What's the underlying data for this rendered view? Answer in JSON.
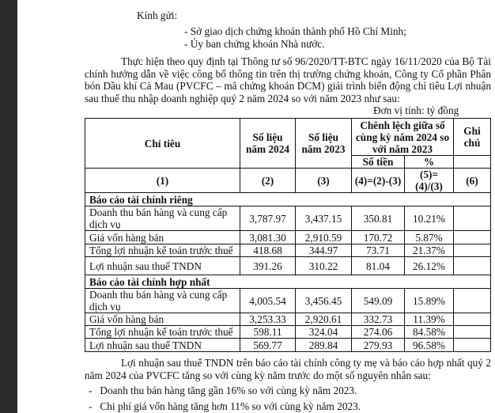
{
  "greeting": "Kính gửi:",
  "recipients": [
    "- Sở giao dịch chứng khoán thành phố Hồ Chí Minh;",
    "- Ủy ban chứng khoán Nhà nước."
  ],
  "intro": "Thực hiện theo quy định tại Thông tư số 96/2020/TT-BTC ngày 16/11/2020 của Bộ Tài chính hướng dẫn về việc công bố thông tin trên thị trường chứng khoán, Công ty Cổ phần Phân bón Dầu khí Cà Mau (PVCFC – mã chứng khoán DCM) giải trình biến động chỉ tiêu Lợi nhuận sau thuế thu nhập doanh nghiệp quý 2 năm 2024 so với năm 2023 như sau:",
  "unit": "Đơn vị tính: tỷ đồng",
  "table": {
    "headers": {
      "indicator": "Chỉ tiêu",
      "y2024": "Số liệu năm 2024",
      "y2023": "Số liệu năm 2023",
      "diff": "Chênh lệch giữa số cùng kỳ năm 2024 so với  năm 2023",
      "amount": "Số tiền",
      "pct": "%",
      "note": "Ghi chú"
    },
    "colnums": [
      "(1)",
      "(2)",
      "(3)",
      "(4)=(2)-(3)",
      "(5)=(4)/(3)",
      "(6)"
    ],
    "sections": [
      {
        "title": "Báo cáo tài chính riêng",
        "rows": [
          [
            "Doanh thu bán hàng và cung cấp dịch vụ",
            "3,787.97",
            "3,437.15",
            "350.81",
            "10.21%",
            ""
          ],
          [
            "Giá vốn hàng bán",
            "3,081.30",
            "2,910.59",
            "170.72",
            "5.87%",
            ""
          ],
          [
            "Tổng lợi nhuận kế toán trước thuế",
            "418.68",
            "344.97",
            "73.71",
            "21.37%",
            ""
          ],
          [
            "Lợi nhuận sau thuế TNDN",
            "391.26",
            "310.22",
            "81.04",
            "26.12%",
            ""
          ]
        ]
      },
      {
        "title": "Báo cáo tài chính hợp nhất",
        "rows": [
          [
            "Doanh thu bán hàng và cung cấp dịch vụ",
            "4,005.54",
            "3,456.45",
            "549.09",
            "15.89%",
            ""
          ],
          [
            "Giá vốn hàng bán",
            "3,253.33",
            "2,920.61",
            "332.73",
            "11.39%",
            ""
          ],
          [
            "Tổng lợi nhuận kế toán trước thuế",
            "598.11",
            "324.04",
            "274.06",
            "84.58%",
            ""
          ],
          [
            "Lợi nhuận sau thuế TNDN",
            "569.77",
            "289.84",
            "279.93",
            "96.58%",
            ""
          ]
        ]
      }
    ]
  },
  "explanation": "Lợi nhuận sau thuế TNDN trên báo cáo tài chính công ty mẹ và báo cáo hợp nhất quý 2 năm 2024 của PVCFC tăng so với cùng kỳ năm trước do một số nguyên nhân sau:",
  "reasons": [
    "Doanh thu bán hàng tăng gần 16% so với cùng kỳ năm 2023.",
    "Chi phí giá vốn hàng tăng hơn 11% so với cùng kỳ năm 2023."
  ]
}
